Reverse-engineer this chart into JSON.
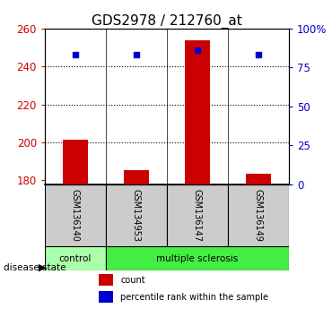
{
  "title": "GDS2978 / 212760_at",
  "samples": [
    "GSM136140",
    "GSM134953",
    "GSM136147",
    "GSM136149"
  ],
  "count_values": [
    201.5,
    185.5,
    254.0,
    183.5
  ],
  "percentile_values": [
    83,
    83,
    86,
    83
  ],
  "ylim_left": [
    178,
    260
  ],
  "ylim_right": [
    0,
    100
  ],
  "yticks_left": [
    180,
    200,
    220,
    240,
    260
  ],
  "yticks_right": [
    0,
    25,
    50,
    75,
    100
  ],
  "ytick_labels_right": [
    "0",
    "25",
    "50",
    "75",
    "100%"
  ],
  "bar_bottom": 178,
  "bar_color": "#cc0000",
  "dot_color": "#0000cc",
  "ctrl_color": "#aaffaa",
  "ms_color": "#44ee44",
  "sample_box_color": "#cccccc",
  "groups": [
    {
      "label": "control",
      "count": 1
    },
    {
      "label": "multiple sclerosis",
      "count": 3
    }
  ],
  "disease_label": "disease state",
  "legend_count": "count",
  "legend_percentile": "percentile rank within the sample",
  "title_fontsize": 11,
  "axis_label_color_left": "#cc0000",
  "axis_label_color_right": "#0000cc",
  "grid_yticks": [
    200,
    220,
    240
  ],
  "bar_width": 0.4
}
